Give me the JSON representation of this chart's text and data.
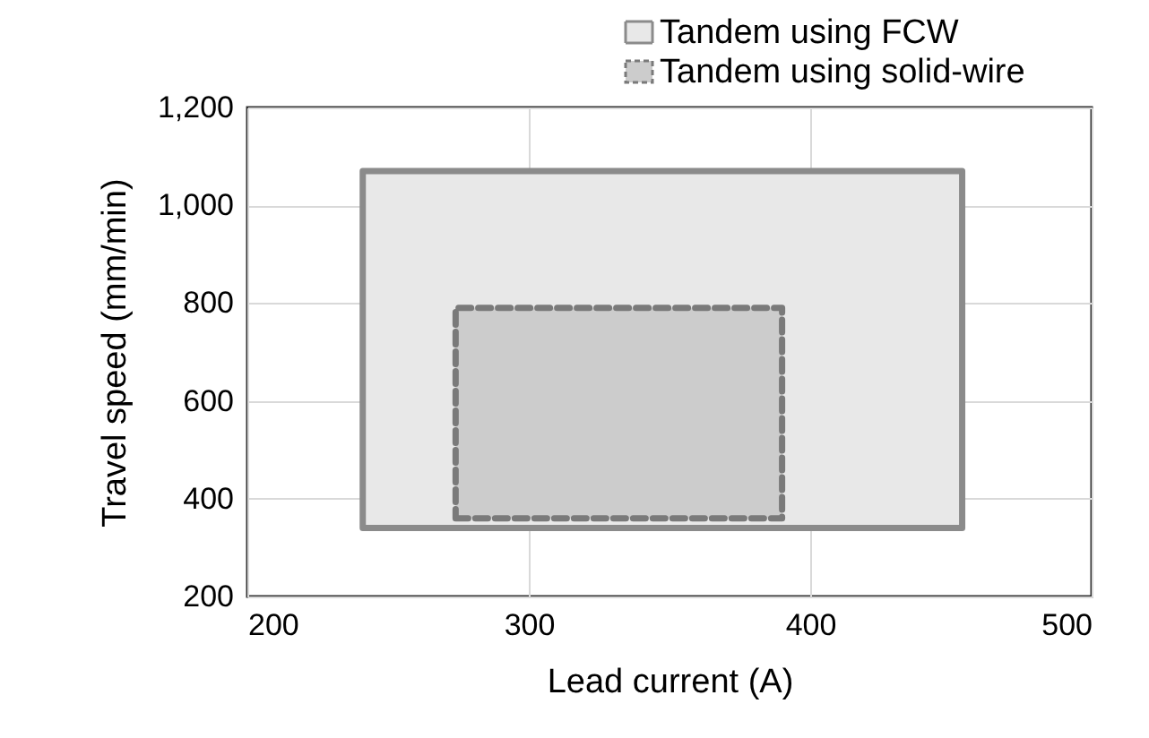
{
  "chart_data": {
    "type": "area",
    "xlabel": "Lead current (A)",
    "ylabel": "Travel speed (mm/min)",
    "series": [
      {
        "name": "Tandem using FCW",
        "color": "#e8e8e8",
        "x": [
          241,
          454,
          454,
          241,
          241
        ],
        "values": [
          340,
          340,
          1070,
          1070,
          340
        ],
        "line_style": "solid"
      },
      {
        "name": "Tandem using solid-wire",
        "color": "#cccccc",
        "x": [
          274,
          390,
          390,
          274,
          274
        ],
        "values": [
          360,
          360,
          790,
          790,
          360
        ],
        "line_style": "dashed"
      }
    ],
    "xlim": [
      200,
      500
    ],
    "xticks": [
      200,
      300,
      400,
      500
    ],
    "ylim": [
      200,
      1200
    ],
    "yticks": [
      200,
      400,
      600,
      800,
      {
        "value": 1000,
        "label": "1,000"
      },
      {
        "value": 1200,
        "label": "1,200"
      }
    ],
    "grid": true,
    "legend": "top right"
  }
}
